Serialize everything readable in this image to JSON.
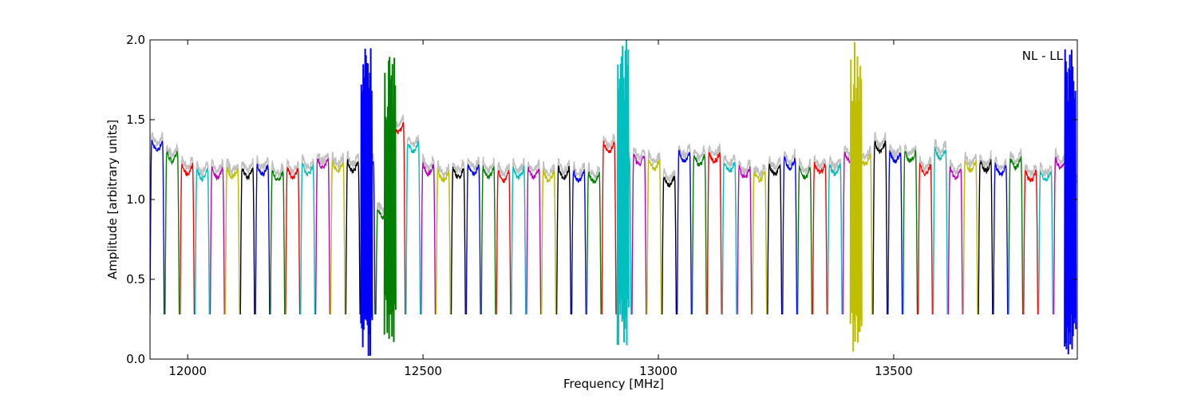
{
  "chart_data": {
    "type": "line",
    "title": "",
    "xlabel": "Frequency [MHz]",
    "ylabel": "Amplitude [arbitrary units]",
    "annotation": "NL - LL",
    "xlim": [
      11920,
      13890
    ],
    "ylim": [
      0.0,
      2.0
    ],
    "xticks": [
      12000,
      12500,
      13000,
      13500
    ],
    "yticks": [
      0.0,
      0.5,
      1.0,
      1.5,
      2.0
    ],
    "ytick_labels": [
      "0.0",
      "0.5",
      "1.0",
      "1.5",
      "2.0"
    ],
    "grid": false,
    "legend": "none",
    "background_color": "#c0c0c0",
    "band_colors": [
      "#0000ff",
      "#008000",
      "#ff0000",
      "#00bfbf",
      "#bf00bf",
      "#bfbf00",
      "#000000"
    ],
    "band_start_mhz": 11920,
    "band_width_mhz": 32,
    "band_count": 62,
    "band_peak_levels": [
      1.37,
      1.3,
      1.22,
      1.19,
      1.2,
      1.2,
      1.2,
      1.22,
      1.18,
      1.2,
      1.22,
      1.26,
      1.24,
      1.24,
      1.23,
      0.95,
      1.48,
      1.36,
      1.22,
      1.18,
      1.2,
      1.22,
      1.2,
      1.18,
      1.2,
      1.2,
      1.18,
      1.2,
      1.18,
      1.17,
      1.36,
      1.26,
      1.28,
      1.25,
      1.15,
      1.3,
      1.28,
      1.3,
      1.24,
      1.2,
      1.18,
      1.22,
      1.26,
      1.2,
      1.23,
      1.22,
      1.3,
      1.28,
      1.36,
      1.3,
      1.3,
      1.22,
      1.32,
      1.2,
      1.24,
      1.24,
      1.22,
      1.26,
      1.18,
      1.18,
      1.26,
      1.16
    ],
    "band_dip_level": 0.28,
    "rfi_spikes": [
      {
        "x": 12380,
        "ymax": 2.0,
        "ymin": 0.0
      },
      {
        "x": 12430,
        "ymax": 1.9,
        "ymin": 0.1
      },
      {
        "x": 12925,
        "ymax": 2.0,
        "ymin": 0.08
      },
      {
        "x": 13420,
        "ymax": 2.0,
        "ymin": 0.02
      },
      {
        "x": 13875,
        "ymax": 2.0,
        "ymin": 0.02
      }
    ]
  }
}
